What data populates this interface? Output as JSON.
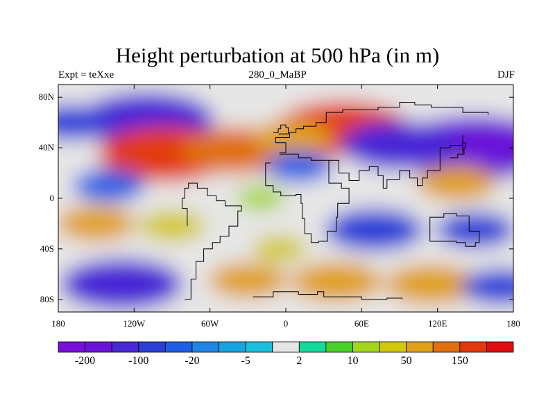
{
  "chart_data": {
    "type": "heatmap",
    "title": "Height perturbation at 500 hPa (in m)",
    "left_label": "Expt = teXxe",
    "center_label": "280_0_MaBP",
    "right_label": "DJF",
    "x_range": [
      -180,
      180
    ],
    "y_range": [
      -90,
      90
    ],
    "x_ticks": [
      {
        "value": -180,
        "label": "180"
      },
      {
        "value": -120,
        "label": "120W"
      },
      {
        "value": -60,
        "label": "60W"
      },
      {
        "value": 0,
        "label": "0"
      },
      {
        "value": 60,
        "label": "60E"
      },
      {
        "value": 120,
        "label": "120E"
      },
      {
        "value": 180,
        "label": "180"
      }
    ],
    "y_ticks": [
      {
        "value": 80,
        "label": "80N"
      },
      {
        "value": 40,
        "label": "40N"
      },
      {
        "value": 0,
        "label": "0"
      },
      {
        "value": -40,
        "label": "40S"
      },
      {
        "value": -80,
        "label": "80S"
      }
    ],
    "colorbar": {
      "levels": [
        -300,
        -200,
        -150,
        -100,
        -50,
        -20,
        -10,
        -5,
        -2,
        2,
        5,
        10,
        20,
        50,
        100,
        150,
        200
      ],
      "labels": [
        "-200",
        "-100",
        "-20",
        "-5",
        "2",
        "10",
        "50",
        "150"
      ],
      "colors": [
        "#7a0fdc",
        "#6a14d8",
        "#4a28d6",
        "#2a3fd8",
        "#1e5ee4",
        "#1f86e6",
        "#17a3e0",
        "#19bfdc",
        "#e6e6e6",
        "#14d99a",
        "#49d12a",
        "#a6d61b",
        "#d2c80e",
        "#e0a018",
        "#e0700f",
        "#e23a0c",
        "#e00e0e"
      ]
    },
    "anomaly_features": [
      {
        "lon": -110,
        "lat": 62,
        "value": -150
      },
      {
        "lon": -170,
        "lat": 60,
        "value": -60
      },
      {
        "lon": -95,
        "lat": 35,
        "value": 150
      },
      {
        "lon": -40,
        "lat": 38,
        "value": 110
      },
      {
        "lon": 45,
        "lat": 55,
        "value": 150
      },
      {
        "lon": 5,
        "lat": 48,
        "value": 60
      },
      {
        "lon": 150,
        "lat": 40,
        "value": -190
      },
      {
        "lon": 90,
        "lat": 42,
        "value": -120
      },
      {
        "lon": 10,
        "lat": 25,
        "value": -40
      },
      {
        "lon": 135,
        "lat": 12,
        "value": 60
      },
      {
        "lon": -140,
        "lat": 10,
        "value": -50
      },
      {
        "lon": -20,
        "lat": 0,
        "value": 12
      },
      {
        "lon": 70,
        "lat": -25,
        "value": -90
      },
      {
        "lon": 150,
        "lat": -25,
        "value": -60
      },
      {
        "lon": -150,
        "lat": -20,
        "value": 60
      },
      {
        "lon": -90,
        "lat": -22,
        "value": 40
      },
      {
        "lon": -130,
        "lat": -68,
        "value": -130
      },
      {
        "lon": -30,
        "lat": -65,
        "value": 60
      },
      {
        "lon": 40,
        "lat": -66,
        "value": 80
      },
      {
        "lon": 115,
        "lat": -68,
        "value": 80
      },
      {
        "lon": 170,
        "lat": -70,
        "value": -60
      },
      {
        "lon": -5,
        "lat": -40,
        "value": 20
      }
    ]
  }
}
